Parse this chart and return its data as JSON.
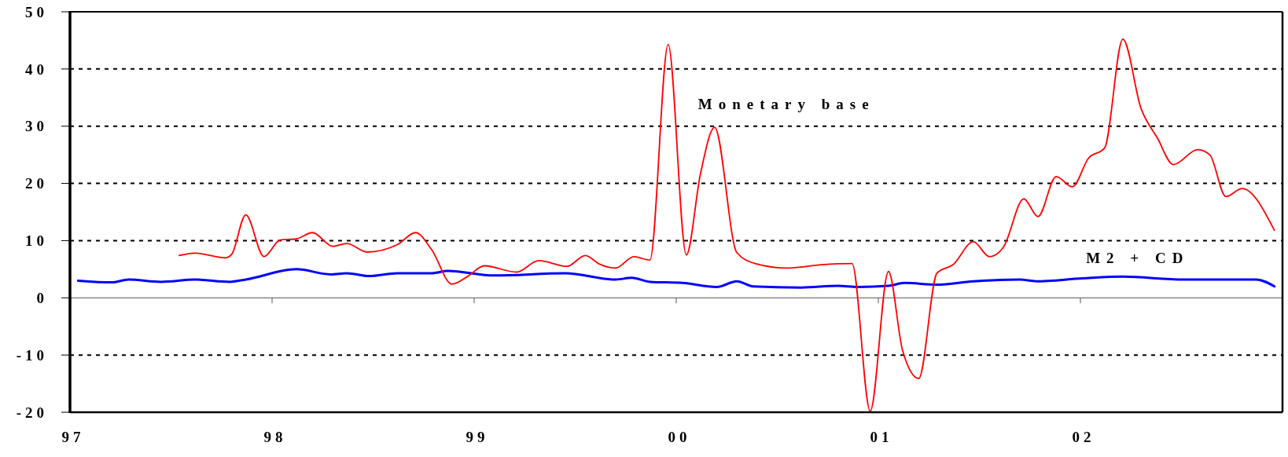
{
  "chart_data": {
    "type": "line",
    "xlim": [
      1997,
      2003
    ],
    "xticks": [
      {
        "value": 1997,
        "label": "97"
      },
      {
        "value": 1998,
        "label": "98"
      },
      {
        "value": 1999,
        "label": "99"
      },
      {
        "value": 2000,
        "label": "00"
      },
      {
        "value": 2001,
        "label": "01"
      },
      {
        "value": 2002,
        "label": "02"
      }
    ],
    "ylim": [
      -20,
      50
    ],
    "yticks": [
      -20,
      -10,
      0,
      10,
      20,
      30,
      40,
      50
    ],
    "grid": "y",
    "series": [
      {
        "name": "M2 + CD",
        "color": "#0000ff",
        "x": [
          1997.04,
          1997.21,
          1997.29,
          1997.45,
          1997.62,
          1997.79,
          1997.87,
          1998.12,
          1998.29,
          1998.37,
          1998.48,
          1998.62,
          1998.79,
          1998.87,
          1999.1,
          1999.45,
          1999.7,
          1999.78,
          1999.87,
          2000.03,
          2000.2,
          2000.3,
          2000.38,
          2000.62,
          2000.8,
          2000.9,
          2001.05,
          2001.13,
          2001.29,
          2001.47,
          2001.7,
          2001.78,
          2002.01,
          2002.21,
          2002.51,
          2002.87,
          2002.96
        ],
        "values": [
          3.0,
          2.7,
          3.2,
          2.8,
          3.2,
          2.8,
          3.2,
          5.0,
          4.1,
          4.3,
          3.8,
          4.3,
          4.3,
          4.7,
          3.9,
          4.3,
          3.2,
          3.5,
          2.8,
          2.6,
          1.9,
          2.9,
          2.0,
          1.8,
          2.1,
          1.9,
          2.1,
          2.6,
          2.3,
          2.9,
          3.2,
          2.9,
          3.4,
          3.7,
          3.2,
          3.2,
          2.0
        ]
      },
      {
        "name": "Monetary base",
        "color": "#ff0000",
        "x": [
          1997.54,
          1997.62,
          1997.77,
          1997.8,
          1997.87,
          1997.96,
          1998.04,
          1998.12,
          1998.2,
          1998.3,
          1998.37,
          1998.47,
          1998.62,
          1998.71,
          1998.79,
          1998.89,
          1998.97,
          1999.05,
          1999.21,
          1999.32,
          1999.46,
          1999.55,
          1999.62,
          1999.7,
          1999.79,
          1999.87,
          1999.96,
          2000.05,
          2000.12,
          2000.19,
          2000.3,
          2000.39,
          2000.55,
          2000.72,
          2000.87,
          2000.96,
          2001.05,
          2001.12,
          2001.2,
          2001.29,
          2001.37,
          2001.47,
          2001.55,
          2001.62,
          2001.72,
          2001.79,
          2001.88,
          2001.96,
          2002.04,
          2002.12,
          2002.21,
          2002.3,
          2002.38,
          2002.46,
          2002.58,
          2002.64,
          2002.72,
          2002.8,
          2002.96
        ],
        "values": [
          7.4,
          7.8,
          7.0,
          7.6,
          14.5,
          7.2,
          10.1,
          10.3,
          11.4,
          9.0,
          9.5,
          8.0,
          9.3,
          11.4,
          8.4,
          2.4,
          3.8,
          5.6,
          4.5,
          6.5,
          5.5,
          7.4,
          5.9,
          5.2,
          7.2,
          6.6,
          44.3,
          7.5,
          21.7,
          29.8,
          7.9,
          6.0,
          5.2,
          5.8,
          6.0,
          -19.8,
          4.6,
          -9.2,
          -14.1,
          4.3,
          5.8,
          9.8,
          7.2,
          8.9,
          17.3,
          14.2,
          21.2,
          19.4,
          24.4,
          26.2,
          45.2,
          33.1,
          28.0,
          23.3,
          25.9,
          25.0,
          17.7,
          19.1,
          11.8
        ]
      }
    ]
  }
}
